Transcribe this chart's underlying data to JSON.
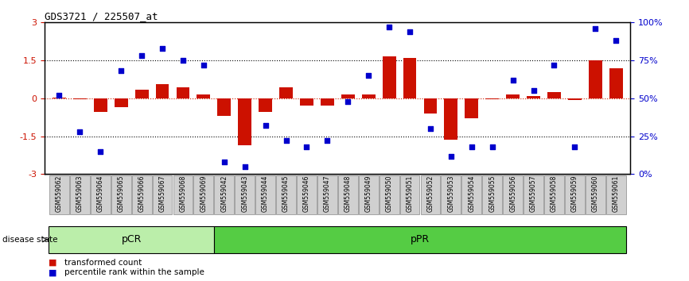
{
  "title": "GDS3721 / 225507_at",
  "samples": [
    "GSM559062",
    "GSM559063",
    "GSM559064",
    "GSM559065",
    "GSM559066",
    "GSM559067",
    "GSM559068",
    "GSM559069",
    "GSM559042",
    "GSM559043",
    "GSM559044",
    "GSM559045",
    "GSM559046",
    "GSM559047",
    "GSM559048",
    "GSM559049",
    "GSM559050",
    "GSM559051",
    "GSM559052",
    "GSM559053",
    "GSM559054",
    "GSM559055",
    "GSM559056",
    "GSM559057",
    "GSM559058",
    "GSM559059",
    "GSM559060",
    "GSM559061"
  ],
  "red_bars": [
    0.03,
    -0.05,
    -0.55,
    -0.35,
    0.35,
    0.55,
    0.45,
    0.15,
    -0.7,
    -1.85,
    -0.55,
    0.45,
    -0.3,
    -0.3,
    0.15,
    0.15,
    1.65,
    1.6,
    -0.6,
    -1.65,
    -0.8,
    -0.05,
    0.15,
    0.1,
    0.25,
    -0.08,
    1.5,
    1.2
  ],
  "blue_squares": [
    52,
    28,
    15,
    68,
    78,
    83,
    75,
    72,
    8,
    5,
    32,
    22,
    18,
    22,
    48,
    65,
    97,
    94,
    30,
    12,
    18,
    18,
    62,
    55,
    72,
    18,
    96,
    88
  ],
  "pCR_count": 8,
  "pPR_count": 20,
  "ylim_left": [
    -3,
    3
  ],
  "yticks_left": [
    -3,
    -1.5,
    0,
    1.5,
    3
  ],
  "yticks_right": [
    0,
    25,
    50,
    75,
    100
  ],
  "bar_color": "#cc1100",
  "square_color": "#0000cc",
  "pCR_color": "#bbeeaa",
  "pPR_color": "#55cc44",
  "dotted_line_color": "#000000",
  "zero_line_color": "#cc2200",
  "legend_red": "transformed count",
  "legend_blue": "percentile rank within the sample",
  "disease_state_label": "disease state"
}
